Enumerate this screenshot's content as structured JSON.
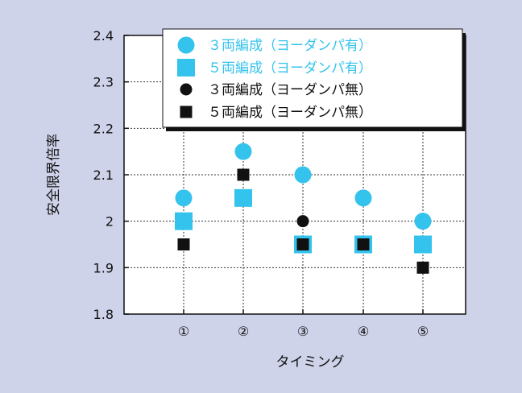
{
  "chart_data": {
    "type": "scatter",
    "title": "",
    "xlabel": "タイミング",
    "ylabel": "安全限界倍率",
    "ylim": [
      1.8,
      2.4
    ],
    "yticks": [
      "1.8",
      "1.9",
      "2",
      "2.1",
      "2.2",
      "2.3",
      "2.4"
    ],
    "categories": [
      "①",
      "②",
      "③",
      "④",
      "⑤"
    ],
    "grid": true,
    "legend_position": "top",
    "series": [
      {
        "name": "３両編成（ヨーダンパ有）",
        "marker": "circle",
        "color": "#33c3ec",
        "values": [
          2.05,
          2.15,
          2.1,
          2.05,
          2.0
        ]
      },
      {
        "name": "５両編成（ヨーダンパ有）",
        "marker": "square",
        "color": "#33c3ec",
        "values": [
          2.0,
          2.05,
          1.95,
          1.95,
          1.95
        ]
      },
      {
        "name": "３両編成（ヨーダンパ無）",
        "marker": "circle",
        "color": "#111111",
        "values": [
          1.95,
          2.1,
          2.0,
          1.95,
          1.9
        ]
      },
      {
        "name": "５両編成（ヨーダンパ無）",
        "marker": "square",
        "color": "#111111",
        "values": [
          1.95,
          2.1,
          1.95,
          1.95,
          1.9
        ]
      }
    ]
  }
}
